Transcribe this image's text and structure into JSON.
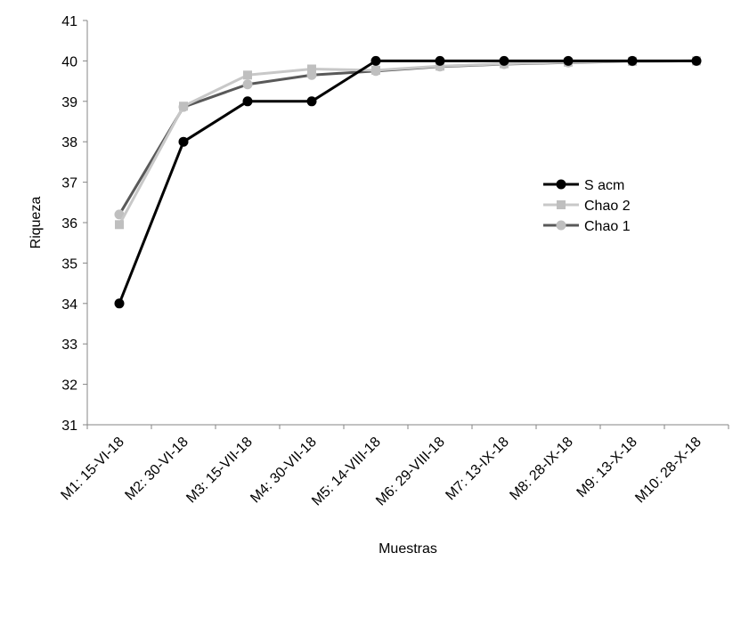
{
  "chart_data": {
    "type": "line",
    "title": "",
    "xlabel": "Muestras",
    "ylabel": "Riqueza",
    "ylim": [
      31,
      41
    ],
    "yticks": [
      31,
      32,
      33,
      34,
      35,
      36,
      37,
      38,
      39,
      40,
      41
    ],
    "grid": false,
    "legend_position": "right",
    "categories": [
      "M1: 15-VI-18",
      "M2: 30-VI-18",
      "M3: 15-VII-18",
      "M4: 30-VII-18",
      "M5: 14-VIII-18",
      "M6: 29-VIII-18",
      "M7: 13-IX-18",
      "M8: 28-IX-18",
      "M9: 13-X-18",
      "M10: 28-X-18"
    ],
    "series": [
      {
        "name": "S acm",
        "color": "#000000",
        "marker": "circle",
        "values": [
          34,
          38,
          39,
          39,
          40,
          40,
          40,
          40,
          40,
          40
        ]
      },
      {
        "name": "Chao 2",
        "color": "#c8c8c8",
        "marker": "square",
        "values": [
          35.95,
          38.88,
          39.65,
          39.8,
          39.77,
          39.87,
          39.93,
          39.97,
          39.99,
          40
        ]
      },
      {
        "name": "Chao 1",
        "color": "#595959",
        "marker": "circle",
        "values": [
          36.2,
          38.86,
          39.42,
          39.65,
          39.75,
          39.86,
          39.92,
          39.96,
          39.99,
          40
        ]
      }
    ],
    "marker_colors": {
      "S acm": "#000000",
      "Chao 2": "#bfbfbf",
      "Chao 1": "#bfbfbf"
    }
  }
}
